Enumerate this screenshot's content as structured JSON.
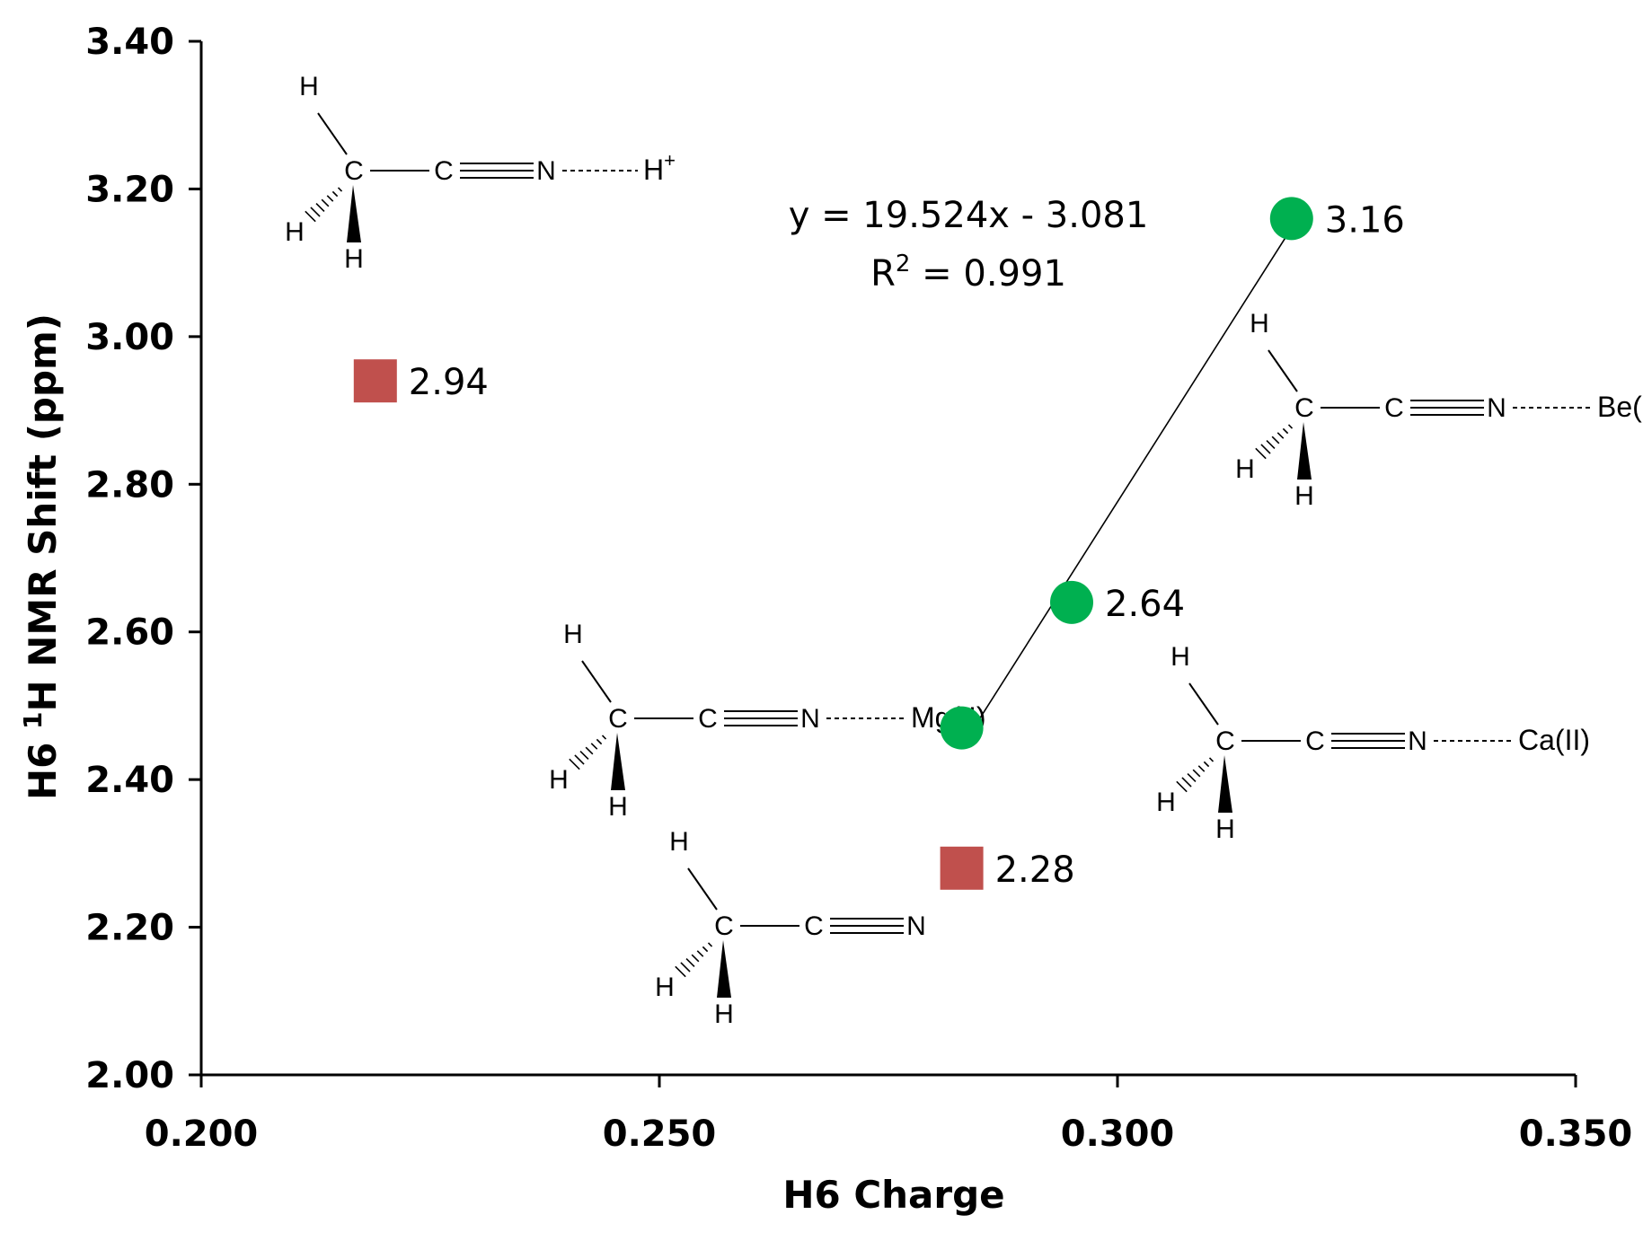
{
  "chart_data": {
    "type": "scatter",
    "title": "",
    "xlabel": "H6 Charge",
    "ylabel_main": "H6 ",
    "ylabel_sup": "1",
    "ylabel_rest": "H NMR Shift (ppm)",
    "xlim": [
      0.2,
      0.35
    ],
    "ylim": [
      2.0,
      3.4
    ],
    "x_ticks": [
      0.2,
      0.25,
      0.3,
      0.35
    ],
    "x_tick_labels": [
      "0.200",
      "0.250",
      "0.300",
      "0.350"
    ],
    "y_ticks": [
      2.0,
      2.2,
      2.4,
      2.6,
      2.8,
      3.0,
      3.2,
      3.4
    ],
    "y_tick_labels": [
      "2.00",
      "2.20",
      "2.40",
      "2.60",
      "2.80",
      "3.00",
      "3.20",
      "3.40"
    ],
    "grid": false,
    "series": [
      {
        "marker": "circle",
        "color": "#00b050",
        "points": [
          {
            "x": 0.283,
            "y": 2.47,
            "label": ""
          },
          {
            "x": 0.295,
            "y": 2.64,
            "label": "2.64"
          },
          {
            "x": 0.319,
            "y": 3.16,
            "label": "3.16"
          }
        ]
      },
      {
        "marker": "square",
        "color": "#c0504d",
        "points": [
          {
            "x": 0.219,
            "y": 2.94,
            "label": "2.94"
          },
          {
            "x": 0.283,
            "y": 2.28,
            "label": "2.28"
          }
        ]
      }
    ],
    "trendline": {
      "x_range": [
        0.2835,
        0.3185
      ],
      "slope": 19.524,
      "intercept": -3.081,
      "equation": "y = 19.524x - 3.081",
      "r2_prefix": "R",
      "r2_sup": "2",
      "r2_value": " = 0.991"
    },
    "structures": [
      {
        "name": "acetonitrile-H-plus",
        "partner": "H",
        "partner_sup": "+"
      },
      {
        "name": "acetonitrile-Be",
        "partner": "Be(II)",
        "partner_sup": ""
      },
      {
        "name": "acetonitrile-Mg",
        "partner": "Mg(II)",
        "partner_sup": ""
      },
      {
        "name": "acetonitrile-Ca",
        "partner": "Ca(II)",
        "partner_sup": ""
      },
      {
        "name": "acetonitrile-free",
        "partner": "",
        "partner_sup": ""
      }
    ],
    "atom_labels": {
      "carbon": "C",
      "hydrogen": "H",
      "nitrogen": "N"
    }
  }
}
